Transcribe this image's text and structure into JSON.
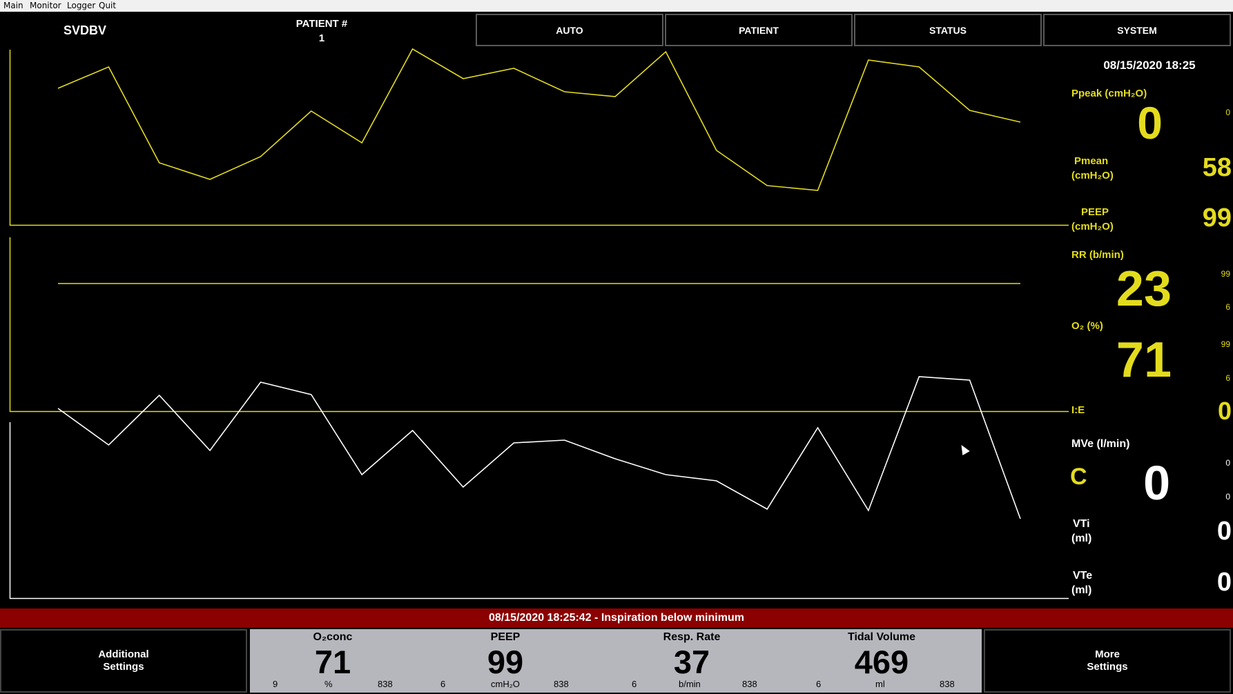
{
  "menu": [
    "Main",
    "Monitor",
    "Logger",
    "Quit"
  ],
  "header": {
    "title": "SVDBV",
    "patient_label": "PATIENT #",
    "patient_number": "1",
    "buttons": [
      "AUTO",
      "PATIENT",
      "STATUS",
      "SYSTEM"
    ]
  },
  "datetime": "08/15/2020 18:25",
  "waveforms": {
    "pressure": [
      128,
      97,
      236,
      260,
      227,
      161,
      207,
      71,
      114,
      99,
      133,
      140,
      75,
      218,
      269,
      276,
      87,
      97,
      160,
      177
    ],
    "o2": [
      411,
      411
    ],
    "volume": [
      592,
      645,
      573,
      653,
      554,
      572,
      688,
      624,
      706,
      642,
      638,
      665,
      688,
      697,
      738,
      620,
      740,
      546,
      551,
      752
    ]
  },
  "readings": {
    "ppeak": {
      "label": "Ppeak (cmH₂O)",
      "value": "0",
      "range_hi": "0"
    },
    "pmean": {
      "label": "Pmean",
      "unit": "(cmH₂O)",
      "value": "58"
    },
    "peep": {
      "label": "PEEP",
      "unit": "(cmH₂O)",
      "value": "99"
    },
    "rr": {
      "label": "RR (b/min)",
      "value": "23",
      "range_hi": "99",
      "range_lo": "6"
    },
    "o2": {
      "label": "O₂ (%)",
      "value": "71",
      "range_hi": "99",
      "range_lo": "6"
    },
    "ie": {
      "label": "I:E",
      "value": "0"
    },
    "mve": {
      "label": "MVe (l/min)",
      "mode": "C",
      "value": "0",
      "range_hi": "0",
      "range_lo": "0"
    },
    "vti": {
      "label": "VTi",
      "unit": "(ml)",
      "value": "0"
    },
    "vte": {
      "label": "VTe",
      "unit": "(ml)",
      "value": "0"
    }
  },
  "alarm": "08/15/2020 18:25:42 - Inspiration below minimum",
  "bottom": {
    "left_button": [
      "Additional",
      "Settings"
    ],
    "right_button": [
      "More",
      "Settings"
    ],
    "settings": [
      {
        "name": "O₂conc",
        "value": "71",
        "min": "9",
        "unit": "%",
        "max": "838"
      },
      {
        "name": "PEEP",
        "value": "99",
        "min": "6",
        "unit": "cmH₂O",
        "max": "838"
      },
      {
        "name": "Resp. Rate",
        "value": "37",
        "min": "6",
        "unit": "b/min",
        "max": "838"
      },
      {
        "name": "Tidal Volume",
        "value": "469",
        "min": "6",
        "unit": "ml",
        "max": "838"
      }
    ]
  },
  "colors": {
    "accent": "#e3dc1d",
    "alarm_bg": "#8b0000",
    "settings_bg": "#b6b7bd"
  }
}
